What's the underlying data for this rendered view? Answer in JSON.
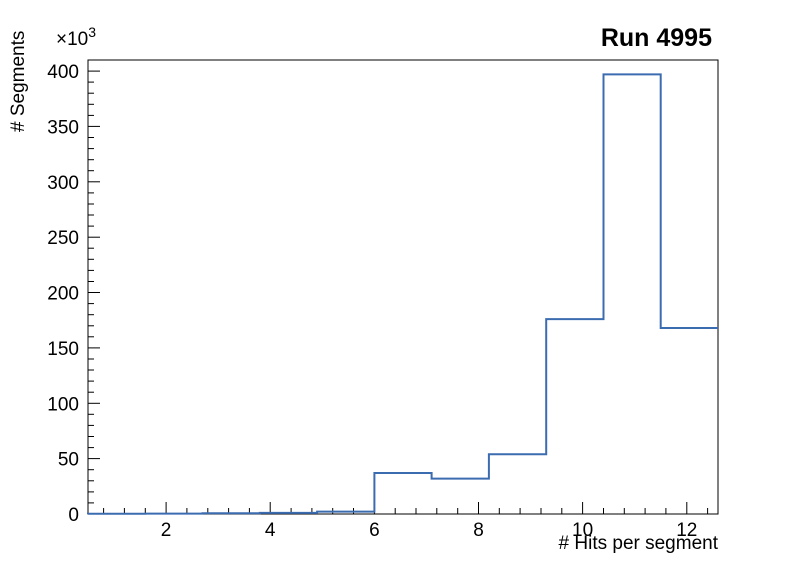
{
  "chart_data": {
    "type": "bar",
    "style": "step-histogram",
    "title": "Run 4995",
    "xlabel": "# Hits per segment",
    "ylabel": "# Segments",
    "y_multiplier_base": "×10",
    "y_multiplier_exp": "3",
    "xlim": [
      0.5,
      12.6
    ],
    "ylim": [
      0,
      410000
    ],
    "bin_edges": [
      0.5,
      1.6,
      2.7,
      3.8,
      4.9,
      6.0,
      7.1,
      8.2,
      9.3,
      10.4,
      11.5,
      12.6
    ],
    "counts": [
      300,
      400,
      600,
      1000,
      2200,
      37000,
      32000,
      54000,
      176000,
      397000,
      168000
    ],
    "xticks": {
      "values": [
        2,
        4,
        6,
        8,
        10,
        12
      ],
      "labels": [
        "2",
        "4",
        "6",
        "8",
        "10",
        "12"
      ],
      "minor_step": 0.4
    },
    "yticks": {
      "values": [
        0,
        50000,
        100000,
        150000,
        200000,
        250000,
        300000,
        350000,
        400000
      ],
      "labels": [
        "0",
        "50",
        "100",
        "150",
        "200",
        "250",
        "300",
        "350",
        "400"
      ],
      "minor_step": 10000
    },
    "line_color": "#3c6cb0",
    "frame_color": "#000000",
    "background": "#ffffff",
    "grid": false,
    "legend": null
  }
}
